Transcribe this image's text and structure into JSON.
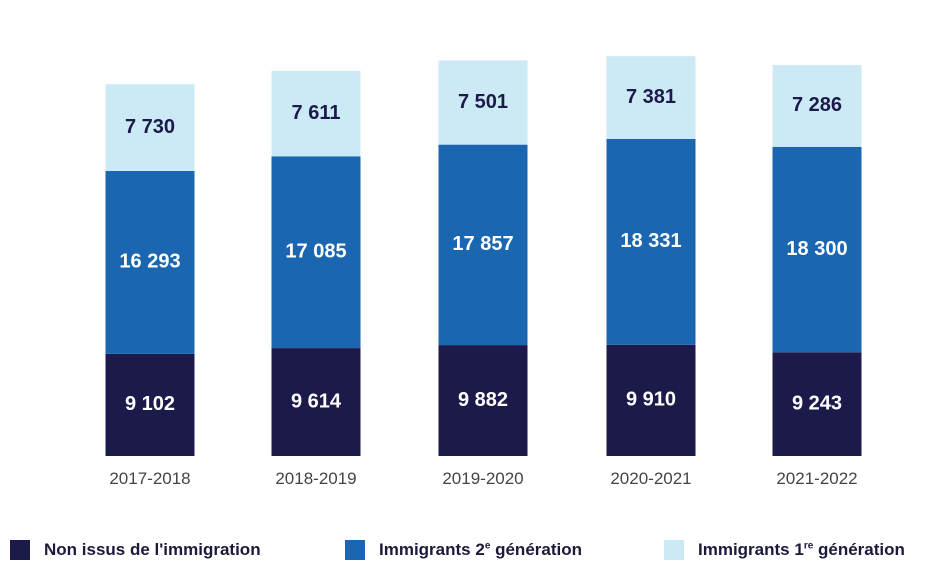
{
  "chart_data": {
    "type": "bar",
    "stacked": true,
    "categories": [
      "2017-2018",
      "2018-2019",
      "2019-2020",
      "2020-2021",
      "2021-2022"
    ],
    "series": [
      {
        "name": "Non issus de l'immigration",
        "color": "#1c1a4a",
        "label_color": "#ffffff",
        "values": [
          9102,
          9614,
          9882,
          9910,
          9243
        ]
      },
      {
        "name": "Immigrants 2e génération",
        "color": "#1a66b0",
        "label_color": "#ffffff",
        "values": [
          16293,
          17085,
          17857,
          18331,
          18300
        ]
      },
      {
        "name": "Immigrants 1re génération",
        "color": "#cceaf5",
        "label_color": "#1c1a4a",
        "values": [
          7730,
          7611,
          7501,
          7381,
          7286
        ]
      }
    ],
    "data_labels": [
      [
        "9 102",
        "9 614",
        "9 882",
        "9 910",
        "9 243"
      ],
      [
        "16 293",
        "17 085",
        "17 857",
        "18 331",
        "18 300"
      ],
      [
        "7 730",
        "7 611",
        "7 501",
        "7 381",
        "7 286"
      ]
    ],
    "legend_position": "bottom",
    "grid": false
  },
  "legend": [
    {
      "prefix": "Non issus de l'immigration",
      "sup": "",
      "suffix": "",
      "color": "#1c1a4a"
    },
    {
      "prefix": "Immigrants 2",
      "sup": "e",
      "suffix": " génération",
      "color": "#1a66b0"
    },
    {
      "prefix": "Immigrants 1",
      "sup": "re",
      "suffix": " génération",
      "color": "#cceaf5"
    }
  ]
}
